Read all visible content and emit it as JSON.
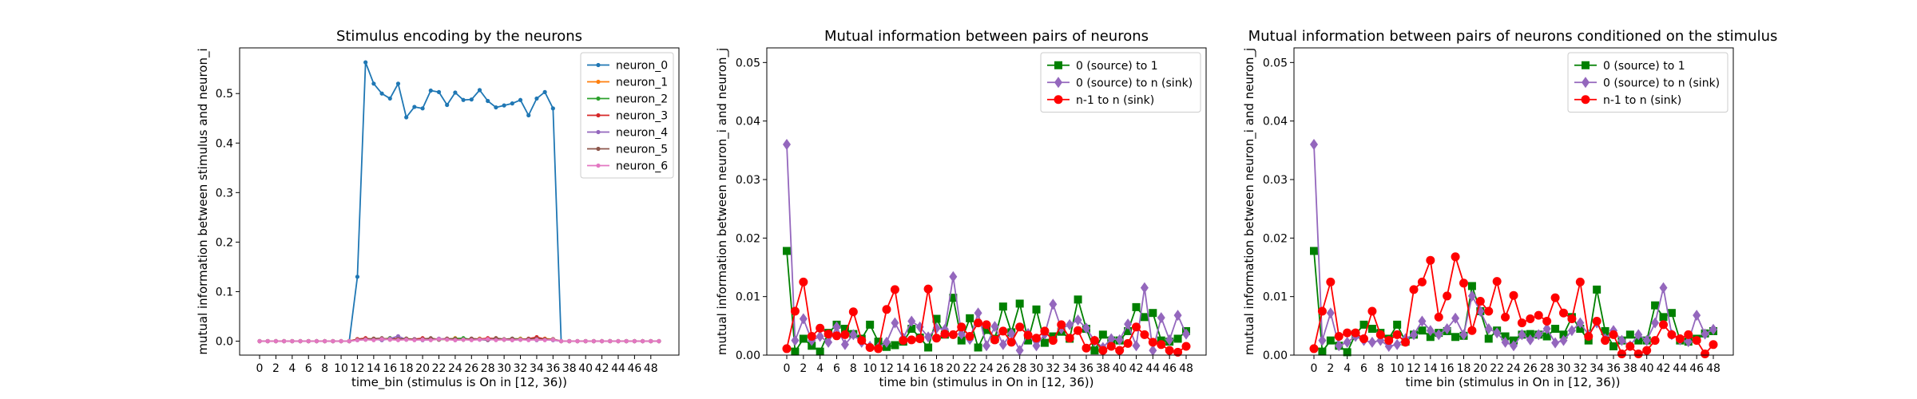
{
  "chart_data": [
    {
      "type": "line",
      "title": "Stimulus encoding by the neurons",
      "xlabel": "time_bin (stimulus is On in [12, 36))",
      "ylabel": "mutual information between stimulus and neuron_i",
      "xlim": [
        -2.45,
        51.45
      ],
      "ylim": [
        -0.0282,
        0.5922
      ],
      "xticks": [
        0,
        2,
        4,
        6,
        8,
        10,
        12,
        14,
        16,
        18,
        20,
        22,
        24,
        26,
        28,
        30,
        32,
        34,
        36,
        38,
        40,
        42,
        44,
        46,
        48
      ],
      "yticks": [
        0.0,
        0.1,
        0.2,
        0.3,
        0.4,
        0.5
      ],
      "ytick_format": 1,
      "legend_position": "upper right",
      "grid": false,
      "x": [
        0,
        1,
        2,
        3,
        4,
        5,
        6,
        7,
        8,
        9,
        10,
        11,
        12,
        13,
        14,
        15,
        16,
        17,
        18,
        19,
        20,
        21,
        22,
        23,
        24,
        25,
        26,
        27,
        28,
        29,
        30,
        31,
        32,
        33,
        34,
        35,
        36,
        37,
        38,
        39,
        40,
        41,
        42,
        43,
        44,
        45,
        46,
        47,
        48,
        49
      ],
      "series": [
        {
          "name": "neuron_0",
          "color": "#1f77b4",
          "marker": "point",
          "values": [
            0,
            0,
            0,
            0,
            0,
            0,
            0,
            0,
            0,
            0,
            0,
            0,
            0.13,
            0.563,
            0.52,
            0.5,
            0.49,
            0.52,
            0.452,
            0.473,
            0.47,
            0.506,
            0.503,
            0.477,
            0.502,
            0.487,
            0.488,
            0.507,
            0.485,
            0.472,
            0.476,
            0.48,
            0.487,
            0.456,
            0.49,
            0.503,
            0.47,
            0,
            0,
            0,
            0,
            0,
            0,
            0,
            0,
            0,
            0,
            0,
            0,
            0
          ]
        },
        {
          "name": "neuron_1",
          "color": "#ff7f0e",
          "marker": "point",
          "values": [
            0,
            0,
            0,
            0,
            0,
            0,
            0,
            0,
            0,
            0,
            0,
            0,
            0.004,
            0.003,
            0.005,
            0.004,
            0.006,
            0.003,
            0.005,
            0.004,
            0.003,
            0.005,
            0.004,
            0.003,
            0.006,
            0.004,
            0.003,
            0.005,
            0.004,
            0.006,
            0.003,
            0.004,
            0.005,
            0.003,
            0.004,
            0.005,
            0.004,
            0,
            0,
            0,
            0,
            0,
            0,
            0,
            0,
            0,
            0,
            0,
            0,
            0
          ]
        },
        {
          "name": "neuron_2",
          "color": "#2ca02c",
          "marker": "point",
          "values": [
            0,
            0,
            0,
            0,
            0,
            0,
            0,
            0,
            0,
            0,
            0,
            0,
            0.003,
            0.005,
            0.004,
            0.003,
            0.006,
            0.004,
            0.005,
            0.003,
            0.004,
            0.005,
            0.003,
            0.004,
            0.005,
            0.006,
            0.003,
            0.004,
            0.005,
            0.004,
            0.003,
            0.005,
            0.004,
            0.003,
            0.006,
            0.004,
            0.003,
            0,
            0,
            0,
            0,
            0,
            0,
            0,
            0,
            0,
            0,
            0,
            0,
            0
          ]
        },
        {
          "name": "neuron_3",
          "color": "#d62728",
          "marker": "point",
          "values": [
            0,
            0,
            0,
            0,
            0,
            0,
            0,
            0,
            0,
            0,
            0,
            0,
            0.004,
            0.006,
            0.003,
            0.005,
            0.004,
            0.005,
            0.003,
            0.004,
            0.006,
            0.003,
            0.004,
            0.005,
            0.004,
            0.003,
            0.005,
            0.004,
            0.006,
            0.005,
            0.003,
            0.004,
            0.003,
            0.005,
            0.008,
            0.004,
            0.003,
            0,
            0,
            0,
            0,
            0,
            0,
            0,
            0,
            0,
            0,
            0,
            0,
            0
          ]
        },
        {
          "name": "neuron_4",
          "color": "#9467bd",
          "marker": "point",
          "values": [
            0,
            0,
            0,
            0,
            0,
            0,
            0,
            0,
            0,
            0,
            0,
            0,
            0.002,
            0.003,
            0.004,
            0.002,
            0.005,
            0.01,
            0.003,
            0.004,
            0.002,
            0.003,
            0.005,
            0.004,
            0.002,
            0.003,
            0.004,
            0.003,
            0.002,
            0.004,
            0.003,
            0.002,
            0.003,
            0.004,
            0.002,
            0.003,
            0.002,
            0,
            0,
            0,
            0,
            0,
            0,
            0,
            0,
            0,
            0,
            0,
            0,
            0
          ]
        },
        {
          "name": "neuron_5",
          "color": "#8c564b",
          "marker": "point",
          "values": [
            0,
            0,
            0,
            0,
            0,
            0,
            0,
            0,
            0,
            0,
            0,
            0,
            0.003,
            0.004,
            0.005,
            0.006,
            0.003,
            0.004,
            0.005,
            0.003,
            0.004,
            0.006,
            0.003,
            0.005,
            0.004,
            0.003,
            0.005,
            0.004,
            0.003,
            0.006,
            0.004,
            0.005,
            0.003,
            0.004,
            0.005,
            0.003,
            0.004,
            0,
            0,
            0,
            0,
            0,
            0,
            0,
            0,
            0,
            0,
            0,
            0,
            0
          ]
        },
        {
          "name": "neuron_6",
          "color": "#e377c2",
          "marker": "point",
          "values": [
            0,
            0,
            0,
            0,
            0,
            0,
            0,
            0,
            0,
            0,
            0,
            0,
            0.002,
            0.003,
            0.002,
            0.004,
            0.003,
            0.002,
            0.003,
            0.002,
            0.003,
            0.002,
            0.004,
            0.003,
            0.002,
            0.003,
            0.002,
            0.003,
            0.004,
            0.002,
            0.003,
            0.002,
            0.003,
            0.002,
            0.003,
            0.002,
            0.003,
            0,
            0,
            0,
            0,
            0,
            0,
            0,
            0,
            0,
            0,
            0,
            0,
            0
          ]
        }
      ]
    },
    {
      "type": "line",
      "title": "Mutual information between pairs of neurons",
      "xlabel": "time bin (stimulus in On in [12, 36))",
      "ylabel": "mutual information between neuron_i and neuron_j",
      "xlim": [
        -2.4,
        50.4
      ],
      "ylim": [
        0,
        0.0525
      ],
      "xticks": [
        0,
        2,
        4,
        6,
        8,
        10,
        12,
        14,
        16,
        18,
        20,
        22,
        24,
        26,
        28,
        30,
        32,
        34,
        36,
        38,
        40,
        42,
        44,
        46,
        48
      ],
      "yticks": [
        0.0,
        0.01,
        0.02,
        0.03,
        0.04,
        0.05
      ],
      "ytick_format": 2,
      "legend_position": "upper right",
      "grid": false,
      "x": [
        0,
        1,
        2,
        3,
        4,
        5,
        6,
        7,
        8,
        9,
        10,
        11,
        12,
        13,
        14,
        15,
        16,
        17,
        18,
        19,
        20,
        21,
        22,
        23,
        24,
        25,
        26,
        27,
        28,
        29,
        30,
        31,
        32,
        33,
        34,
        35,
        36,
        37,
        38,
        39,
        40,
        41,
        42,
        43,
        44,
        45,
        46,
        47,
        48
      ],
      "series": [
        {
          "name": "0 (source) to 1",
          "color": "#008000",
          "marker": "square",
          "values": [
            0.0178,
            0.0006,
            0.0028,
            0.0016,
            0.0006,
            0.0038,
            0.0052,
            0.0045,
            0.0036,
            0.0028,
            0.0052,
            0.0023,
            0.0014,
            0.0017,
            0.0023,
            0.0045,
            0.003,
            0.0013,
            0.0062,
            0.0035,
            0.0098,
            0.0025,
            0.0063,
            0.0013,
            0.0043,
            0.0028,
            0.0083,
            0.0039,
            0.0088,
            0.0025,
            0.0078,
            0.0021,
            0.0032,
            0.004,
            0.0028,
            0.0095,
            0.0045,
            0.0008,
            0.0035,
            0.0025,
            0.0025,
            0.0041,
            0.0082,
            0.0065,
            0.0072,
            0.0025,
            0.0023,
            0.0028,
            0.0041
          ]
        },
        {
          "name": "0 (source) to n (sink)",
          "color": "#9467bd",
          "marker": "diamond",
          "values": [
            0.036,
            0.0025,
            0.0062,
            0.0025,
            0.0032,
            0.0022,
            0.0048,
            0.0018,
            0.0035,
            0.0022,
            0.0015,
            0.0013,
            0.0022,
            0.0055,
            0.0029,
            0.0058,
            0.0048,
            0.0031,
            0.0046,
            0.0044,
            0.0134,
            0.0036,
            0.0027,
            0.0072,
            0.0016,
            0.0049,
            0.0018,
            0.0037,
            0.0008,
            0.0037,
            0.0016,
            0.0036,
            0.0087,
            0.0045,
            0.0052,
            0.006,
            0.0046,
            0.0024,
            0.0013,
            0.0028,
            0.0026,
            0.0053,
            0.0016,
            0.0115,
            0.0008,
            0.0064,
            0.0026,
            0.0068,
            0.0036
          ]
        },
        {
          "name": "n-1 to n (sink)",
          "color": "#ff0000",
          "marker": "circle",
          "values": [
            0.0011,
            0.0075,
            0.0125,
            0.0032,
            0.0046,
            0.0036,
            0.0033,
            0.0035,
            0.0074,
            0.0025,
            0.0013,
            0.0011,
            0.0078,
            0.0112,
            0.0025,
            0.0026,
            0.0028,
            0.0113,
            0.0029,
            0.0036,
            0.0035,
            0.0048,
            0.0032,
            0.0055,
            0.0052,
            0.0026,
            0.0041,
            0.0022,
            0.0048,
            0.0034,
            0.0029,
            0.0041,
            0.0025,
            0.0052,
            0.0029,
            0.0042,
            0.0012,
            0.0025,
            0.0008,
            0.0015,
            0.0008,
            0.002,
            0.0048,
            0.0035,
            0.0022,
            0.0018,
            0.0008,
            0.0005,
            0.0015
          ]
        }
      ]
    },
    {
      "type": "line",
      "title": "Mutual information between pairs of neurons conditioned on the stimulus",
      "xlabel": "time bin (stimulus in On in [12, 36))",
      "ylabel": "mutual information between neuron_i and neuron_j",
      "xlim": [
        -2.4,
        50.4
      ],
      "ylim": [
        0,
        0.0525
      ],
      "xticks": [
        0,
        2,
        4,
        6,
        8,
        10,
        12,
        14,
        16,
        18,
        20,
        22,
        24,
        26,
        28,
        30,
        32,
        34,
        36,
        38,
        40,
        42,
        44,
        46,
        48
      ],
      "yticks": [
        0.0,
        0.01,
        0.02,
        0.03,
        0.04,
        0.05
      ],
      "ytick_format": 2,
      "legend_position": "upper right",
      "grid": false,
      "x": [
        0,
        1,
        2,
        3,
        4,
        5,
        6,
        7,
        8,
        9,
        10,
        11,
        12,
        13,
        14,
        15,
        16,
        17,
        18,
        19,
        20,
        21,
        22,
        23,
        24,
        25,
        26,
        27,
        28,
        29,
        30,
        31,
        32,
        33,
        34,
        35,
        36,
        37,
        38,
        39,
        40,
        41,
        42,
        43,
        44,
        45,
        46,
        47,
        48
      ],
      "series": [
        {
          "name": "0 (source) to 1",
          "color": "#008000",
          "marker": "square",
          "values": [
            0.0178,
            0.0006,
            0.0025,
            0.0016,
            0.0005,
            0.0036,
            0.0052,
            0.0045,
            0.0038,
            0.0028,
            0.0052,
            0.0023,
            0.0035,
            0.0042,
            0.0031,
            0.0038,
            0.0041,
            0.0031,
            0.0033,
            0.0118,
            0.0075,
            0.0028,
            0.0042,
            0.0032,
            0.0025,
            0.0035,
            0.0036,
            0.0035,
            0.0032,
            0.0045,
            0.0035,
            0.0065,
            0.0045,
            0.0025,
            0.0112,
            0.0041,
            0.0015,
            0.0025,
            0.0035,
            0.0025,
            0.0025,
            0.0085,
            0.0065,
            0.0072,
            0.0025,
            0.0023,
            0.0028,
            0.0037,
            0.0041
          ]
        },
        {
          "name": "0 (source) to n (sink)",
          "color": "#9467bd",
          "marker": "diamond",
          "values": [
            0.036,
            0.0025,
            0.0072,
            0.0016,
            0.0022,
            0.0032,
            0.0025,
            0.0022,
            0.0025,
            0.0015,
            0.0018,
            0.0028,
            0.0035,
            0.0058,
            0.0042,
            0.0035,
            0.0045,
            0.0063,
            0.0035,
            0.0101,
            0.0075,
            0.0045,
            0.0038,
            0.0022,
            0.0016,
            0.0035,
            0.0026,
            0.0035,
            0.0045,
            0.0021,
            0.0025,
            0.0042,
            0.0055,
            0.0035,
            0.0055,
            0.0028,
            0.0042,
            0.0025,
            0.0016,
            0.0035,
            0.0025,
            0.0055,
            0.0115,
            0.0035,
            0.0026,
            0.0023,
            0.0068,
            0.0036,
            0.0044
          ]
        },
        {
          "name": "n-1 to n (sink)",
          "color": "#ff0000",
          "marker": "circle",
          "values": [
            0.0011,
            0.0075,
            0.0125,
            0.0032,
            0.0038,
            0.0038,
            0.0028,
            0.0075,
            0.0035,
            0.0025,
            0.0035,
            0.0022,
            0.0112,
            0.0125,
            0.0162,
            0.0065,
            0.0101,
            0.0168,
            0.0123,
            0.0042,
            0.0092,
            0.0075,
            0.0126,
            0.0065,
            0.0102,
            0.0055,
            0.0062,
            0.0068,
            0.0058,
            0.0098,
            0.0072,
            0.0062,
            0.0125,
            0.0032,
            0.0058,
            0.0025,
            0.0035,
            0.0002,
            0.0015,
            0.0002,
            0.0008,
            0.0025,
            0.0052,
            0.0035,
            0.0028,
            0.0035,
            0.0025,
            0.0002,
            0.0018
          ]
        }
      ]
    }
  ]
}
